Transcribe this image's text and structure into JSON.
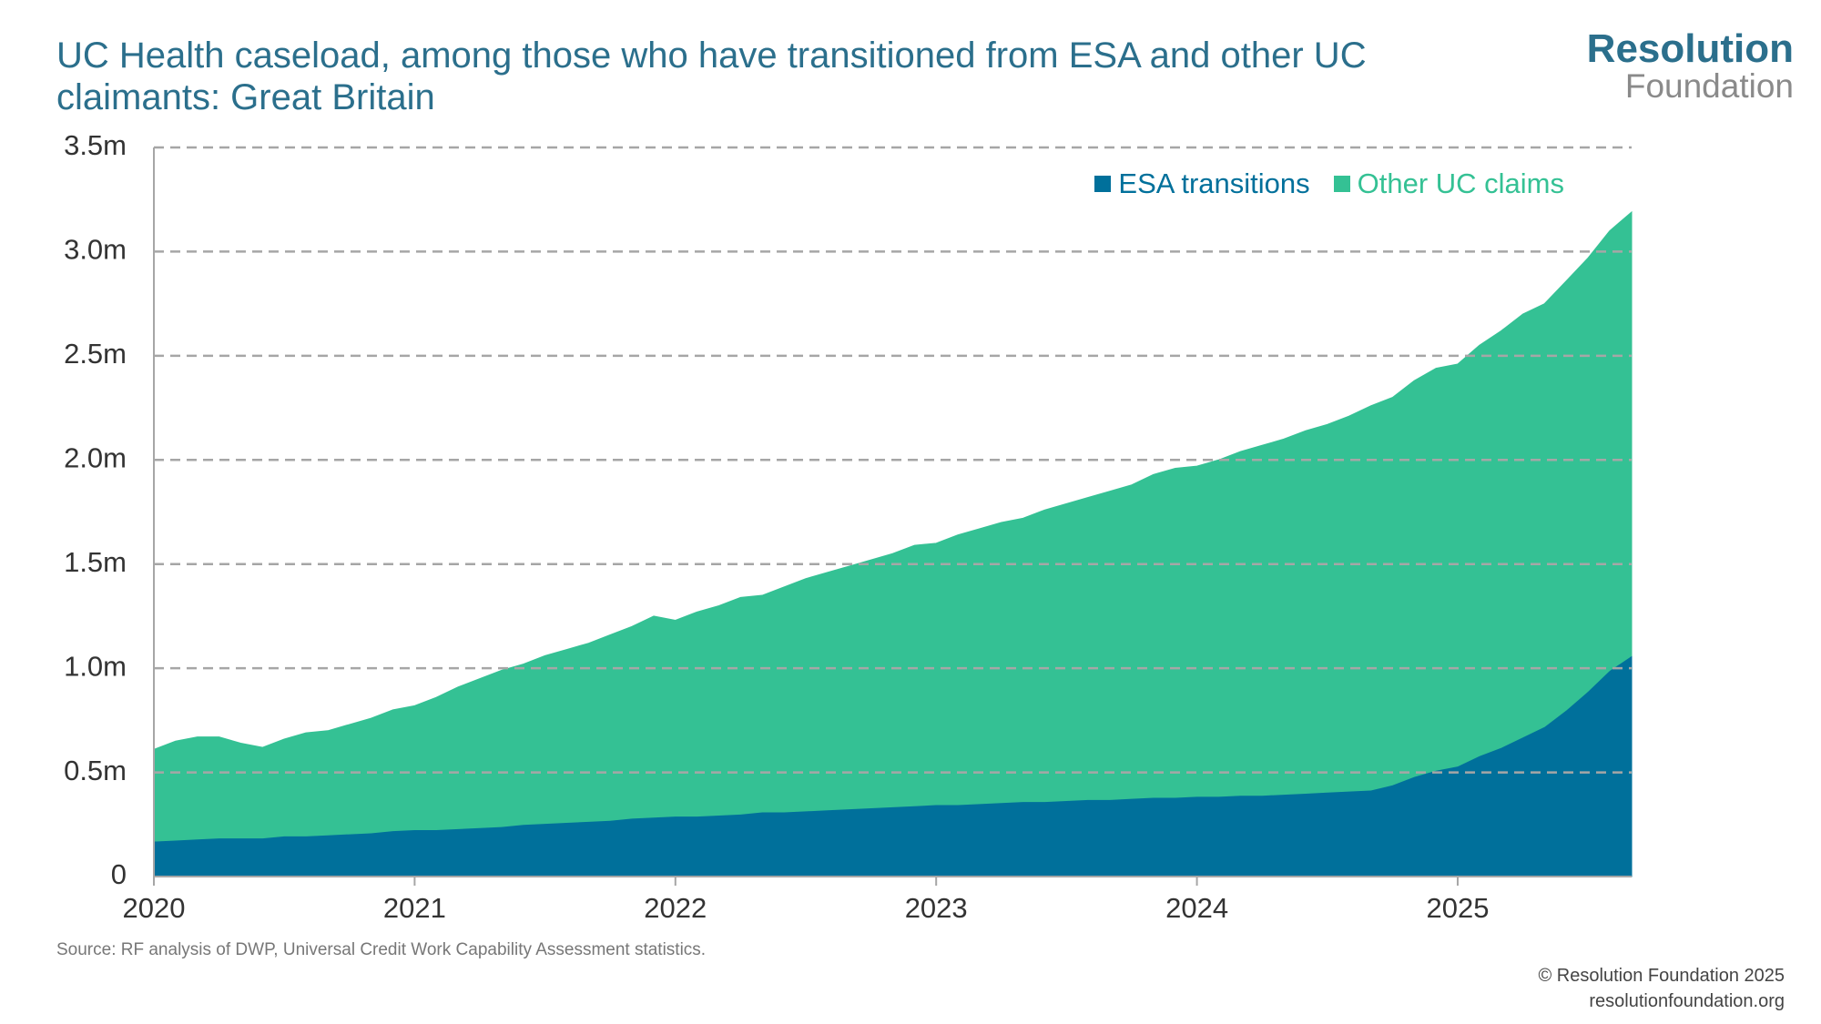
{
  "chart_data": {
    "type": "stacked-area",
    "title": "UC Health caseload, among those who have transitioned from ESA and other UC claimants: Great Britain",
    "logo": {
      "line1": "Resolution",
      "line2": "Foundation"
    },
    "source": "Source: RF analysis of DWP, Universal Credit Work Capability Assessment statistics.",
    "copyright": "© Resolution Foundation 2025",
    "website": "resolutionfoundation.org",
    "x": [
      2020,
      2020.083,
      2020.167,
      2020.25,
      2020.333,
      2020.417,
      2020.5,
      2020.583,
      2020.667,
      2020.75,
      2020.833,
      2020.917,
      2021,
      2021.083,
      2021.167,
      2021.25,
      2021.333,
      2021.417,
      2021.5,
      2021.583,
      2021.667,
      2021.75,
      2021.833,
      2021.917,
      2022,
      2022.083,
      2022.167,
      2022.25,
      2022.333,
      2022.417,
      2022.5,
      2022.583,
      2022.667,
      2022.75,
      2022.833,
      2022.917,
      2023,
      2023.083,
      2023.167,
      2023.25,
      2023.333,
      2023.417,
      2023.5,
      2023.583,
      2023.667,
      2023.75,
      2023.833,
      2023.917,
      2024,
      2024.083,
      2024.167,
      2024.25,
      2024.333,
      2024.417,
      2024.5,
      2024.583,
      2024.667,
      2024.75,
      2024.833,
      2024.917,
      2025,
      2025.083,
      2025.167,
      2025.25,
      2025.333,
      2025.417,
      2025.5,
      2025.583,
      2025.667
    ],
    "series": [
      {
        "name": "ESA transitions",
        "color": "#00709b",
        "values": [
          0.17,
          0.175,
          0.18,
          0.185,
          0.185,
          0.185,
          0.195,
          0.195,
          0.2,
          0.205,
          0.21,
          0.22,
          0.225,
          0.225,
          0.23,
          0.235,
          0.24,
          0.25,
          0.255,
          0.26,
          0.265,
          0.27,
          0.28,
          0.285,
          0.29,
          0.29,
          0.295,
          0.3,
          0.31,
          0.31,
          0.315,
          0.32,
          0.325,
          0.33,
          0.335,
          0.34,
          0.345,
          0.345,
          0.35,
          0.355,
          0.36,
          0.36,
          0.365,
          0.37,
          0.37,
          0.375,
          0.38,
          0.38,
          0.385,
          0.385,
          0.39,
          0.39,
          0.395,
          0.4,
          0.405,
          0.41,
          0.415,
          0.44,
          0.48,
          0.51,
          0.53,
          0.58,
          0.62,
          0.67,
          0.72,
          0.8,
          0.89,
          0.99,
          1.06
        ]
      },
      {
        "name": "Other UC claims",
        "color": "#34c194",
        "values": [
          0.44,
          0.475,
          0.49,
          0.485,
          0.455,
          0.435,
          0.465,
          0.495,
          0.5,
          0.525,
          0.55,
          0.58,
          0.595,
          0.635,
          0.68,
          0.715,
          0.75,
          0.77,
          0.805,
          0.83,
          0.855,
          0.89,
          0.92,
          0.965,
          0.94,
          0.98,
          1.005,
          1.04,
          1.04,
          1.08,
          1.115,
          1.14,
          1.165,
          1.19,
          1.215,
          1.25,
          1.255,
          1.295,
          1.32,
          1.345,
          1.36,
          1.4,
          1.425,
          1.45,
          1.48,
          1.505,
          1.55,
          1.58,
          1.585,
          1.615,
          1.65,
          1.68,
          1.705,
          1.74,
          1.765,
          1.8,
          1.845,
          1.86,
          1.9,
          1.93,
          1.93,
          1.97,
          2.0,
          2.03,
          2.03,
          2.06,
          2.08,
          2.11,
          2.13
        ]
      }
    ],
    "xlim": [
      2020,
      2025.667
    ],
    "xticks": [
      2020,
      2021,
      2022,
      2023,
      2024,
      2025
    ],
    "ylim": [
      0,
      3.5
    ],
    "yticks": [
      0,
      {
        "value": 0.5,
        "label": "0.5m"
      },
      {
        "value": 1,
        "label": "1.0m"
      },
      {
        "value": 1.5,
        "label": "1.5m"
      },
      {
        "value": 2,
        "label": "2.0m"
      },
      {
        "value": 2.5,
        "label": "2.5m"
      },
      {
        "value": 3,
        "label": "3.0m"
      },
      {
        "value": 3.5,
        "label": "3.5m"
      }
    ],
    "grid": true,
    "legend": "upper right"
  }
}
